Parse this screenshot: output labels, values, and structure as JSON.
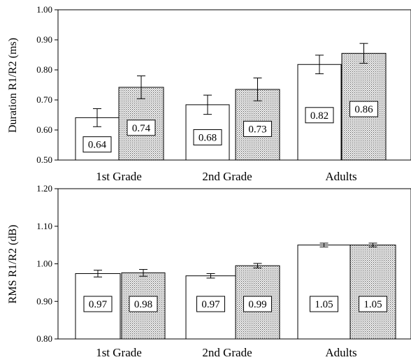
{
  "chart_data": [
    {
      "type": "bar",
      "ylabel": "Duration R1/R2 (ms)",
      "categories": [
        "1st Grade",
        "2nd Grade",
        "Adults"
      ],
      "ylim": [
        0.5,
        1.0
      ],
      "yticks": [
        "0.50",
        "0.60",
        "0.70",
        "0.80",
        "0.90",
        "1.00"
      ],
      "grid": false,
      "series": [
        {
          "fill": "open",
          "values": [
            0.641,
            0.684,
            0.818
          ],
          "error": [
            0.03,
            0.032,
            0.031
          ],
          "labels": [
            "0.64",
            "0.68",
            "0.82"
          ]
        },
        {
          "fill": "dotted",
          "values": [
            0.742,
            0.735,
            0.855
          ],
          "error": [
            0.038,
            0.038,
            0.033
          ],
          "labels": [
            "0.74",
            "0.73",
            "0.86"
          ]
        }
      ]
    },
    {
      "type": "bar",
      "ylabel": "RMS R1/R2 (dB)",
      "categories": [
        "1st Grade",
        "2nd Grade",
        "Adults"
      ],
      "ylim": [
        0.8,
        1.2
      ],
      "yticks": [
        "0.80",
        "0.90",
        "1.00",
        "1.10",
        "1.20"
      ],
      "grid": false,
      "series": [
        {
          "fill": "open",
          "values": [
            0.974,
            0.968,
            1.05
          ],
          "error": [
            0.009,
            0.006,
            0.005
          ],
          "labels": [
            "0.97",
            "0.97",
            "1.05"
          ]
        },
        {
          "fill": "dotted",
          "values": [
            0.976,
            0.995,
            1.05
          ],
          "error": [
            0.009,
            0.006,
            0.005
          ],
          "labels": [
            "0.98",
            "0.99",
            "1.05"
          ]
        }
      ]
    }
  ]
}
